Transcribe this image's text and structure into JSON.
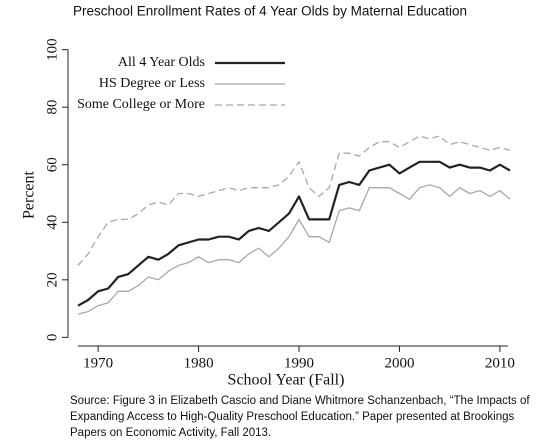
{
  "chart_data": {
    "type": "line",
    "title": "Preschool Enrollment Rates of 4 Year Olds by Maternal Education",
    "x_label": "School Year (Fall)",
    "y_label": "Percent",
    "x": [
      1968,
      1969,
      1970,
      1971,
      1972,
      1973,
      1974,
      1975,
      1976,
      1977,
      1978,
      1979,
      1980,
      1981,
      1982,
      1983,
      1984,
      1985,
      1986,
      1987,
      1988,
      1989,
      1990,
      1991,
      1992,
      1993,
      1994,
      1995,
      1996,
      1997,
      1998,
      1999,
      2000,
      2001,
      2002,
      2003,
      2004,
      2005,
      2006,
      2007,
      2008,
      2009,
      2010,
      2011
    ],
    "series": [
      {
        "name": "All 4 Year Olds",
        "color": "#222222",
        "width": 2.2,
        "dash": false,
        "values": [
          11,
          13,
          16,
          17,
          21,
          22,
          25,
          28,
          27,
          29,
          32,
          33,
          34,
          34,
          35,
          35,
          34,
          37,
          38,
          37,
          40,
          43,
          49,
          41,
          41,
          41,
          53,
          54,
          53,
          58,
          59,
          60,
          57,
          59,
          61,
          61,
          61,
          59,
          60,
          59,
          59,
          58,
          60,
          58
        ]
      },
      {
        "name": "HS Degree or Less",
        "color": "#a8a8a8",
        "width": 1.3,
        "dash": false,
        "values": [
          8,
          9,
          11,
          12,
          16,
          16,
          18,
          21,
          20,
          23,
          25,
          26,
          28,
          26,
          27,
          27,
          26,
          29,
          31,
          28,
          31,
          35,
          41,
          35,
          35,
          33,
          44,
          45,
          44,
          52,
          52,
          52,
          50,
          48,
          52,
          53,
          52,
          49,
          52,
          50,
          51,
          49,
          51,
          48
        ]
      },
      {
        "name": "Some College or More",
        "color": "#a8a8a8",
        "width": 1.3,
        "dash": true,
        "values": [
          25,
          29,
          35,
          40,
          41,
          41,
          43,
          46,
          47,
          46,
          50,
          50,
          49,
          50,
          51,
          52,
          51,
          52,
          52,
          52,
          53,
          56,
          61,
          52,
          49,
          52,
          64,
          64,
          63,
          66,
          68,
          68,
          66,
          68,
          70,
          69,
          70,
          67,
          68,
          67,
          66,
          65,
          66,
          65
        ]
      }
    ],
    "xlim": [
      1967,
      2012
    ],
    "xticks": [
      1970,
      1980,
      1990,
      2000,
      2010
    ],
    "ylim": [
      -3,
      103
    ],
    "yticks": [
      0,
      20,
      40,
      60,
      80,
      100
    ],
    "grid": false,
    "legend": "upper left",
    "source_lines": [
      "Source: Figure 3 in Elizabeth Cascio and Diane Whitmore Schanzenbach, “The Impacts of",
      "Expanding Access to High-Quality Preschool Education.” Paper presented at Brookings",
      "Papers on Economic Activity, Fall 2013."
    ]
  }
}
